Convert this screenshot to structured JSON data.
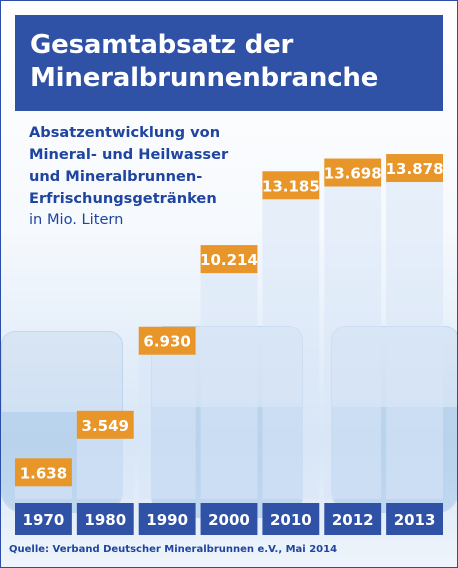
{
  "header": {
    "title_line1": "Gesamtabsatz der",
    "title_line2": "Mineralbrunnenbranche"
  },
  "chart_data": {
    "type": "bar",
    "title": "Gesamtabsatz der Mineralbrunnenbranche",
    "subtitle_lines": [
      "Absatzentwicklung von",
      "Mineral- und Heilwasser",
      "und Mineralbrunnen-",
      "Erfrischungsgetränken"
    ],
    "unit": "in Mio. Litern",
    "categories": [
      "1970",
      "1980",
      "1990",
      "2000",
      "2010",
      "2012",
      "2013"
    ],
    "values": [
      1638,
      3549,
      6930,
      10214,
      13185,
      13698,
      13878
    ],
    "value_labels": [
      "1.638",
      "3.549",
      "6.930",
      "10.214",
      "13.185",
      "13.698",
      "13.878"
    ],
    "ylim": [
      0,
      14000
    ],
    "grid": false,
    "colors": {
      "bar_fill": "#d8e5f7",
      "value_box": "#e8962a",
      "category_box": "#2f51a6",
      "header": "#2f51a6",
      "text_blue": "#1f45a0"
    }
  },
  "footer": {
    "source": "Quelle: Verband Deutscher Mineralbrunnen e.V., Mai 2014"
  }
}
